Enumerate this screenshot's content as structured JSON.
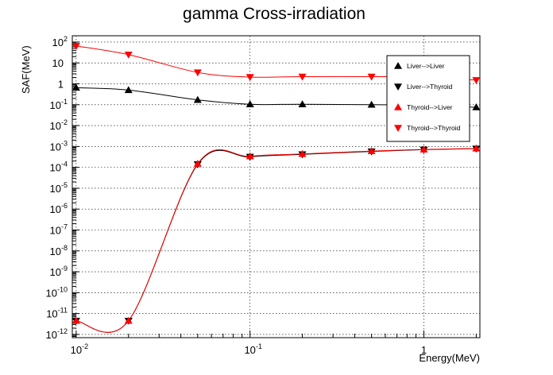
{
  "chart_data": {
    "type": "line",
    "title": "gamma Cross-irradiation",
    "xlabel": "Energy(MeV)",
    "ylabel": "SAF(MeV)",
    "x_scale": "log",
    "y_scale": "log",
    "xlim": [
      0.0095,
      2.1
    ],
    "ylim": [
      7e-13,
      200
    ],
    "grid": true,
    "legend_position": "top-right",
    "x_ticks": [
      {
        "base": "10",
        "exp": "-2",
        "value": 0.01
      },
      {
        "base": "10",
        "exp": "-1",
        "value": 0.1
      },
      {
        "base": "1",
        "exp": "",
        "value": 1
      }
    ],
    "y_ticks": [
      {
        "base": "10",
        "exp": "2",
        "value": 100
      },
      {
        "base": "10",
        "exp": "",
        "value": 10
      },
      {
        "base": "1",
        "exp": "",
        "value": 1
      },
      {
        "base": "10",
        "exp": "-1",
        "value": 0.1
      },
      {
        "base": "10",
        "exp": "-2",
        "value": 0.01
      },
      {
        "base": "10",
        "exp": "-3",
        "value": 0.001
      },
      {
        "base": "10",
        "exp": "-4",
        "value": 0.0001
      },
      {
        "base": "10",
        "exp": "-5",
        "value": 1e-05
      },
      {
        "base": "10",
        "exp": "-6",
        "value": 1e-06
      },
      {
        "base": "10",
        "exp": "-7",
        "value": 1e-07
      },
      {
        "base": "10",
        "exp": "-8",
        "value": 1e-08
      },
      {
        "base": "10",
        "exp": "-9",
        "value": 1e-09
      },
      {
        "base": "10",
        "exp": "-10",
        "value": 1e-10
      },
      {
        "base": "10",
        "exp": "-11",
        "value": 1e-11
      },
      {
        "base": "10",
        "exp": "-12",
        "value": 1e-12
      }
    ],
    "x": [
      0.01,
      0.02,
      0.05,
      0.1,
      0.2,
      0.5,
      1,
      2
    ],
    "series": [
      {
        "name": "Liver-->Liver",
        "color": "#000000",
        "marker": "triangle-up",
        "values": [
          0.65,
          0.5,
          0.17,
          0.105,
          0.105,
          0.1,
          0.095,
          0.075
        ]
      },
      {
        "name": "Liver-->Thyroid",
        "color": "#000000",
        "marker": "triangle-down",
        "values": [
          4.5e-12,
          4.5e-12,
          0.00014,
          0.00032,
          0.00042,
          0.00058,
          0.0007,
          0.00078
        ]
      },
      {
        "name": "Thyroid-->Liver",
        "color": "#ff0000",
        "marker": "triangle-up",
        "values": [
          4.5e-12,
          4.5e-12,
          0.00015,
          0.00034,
          0.00044,
          0.0006,
          0.00072,
          0.0008
        ]
      },
      {
        "name": "Thyroid-->Thyroid",
        "color": "#ff0000",
        "marker": "triangle-down",
        "values": [
          65,
          25,
          3.5,
          2.1,
          2.2,
          2.2,
          2.1,
          1.5
        ]
      }
    ]
  }
}
